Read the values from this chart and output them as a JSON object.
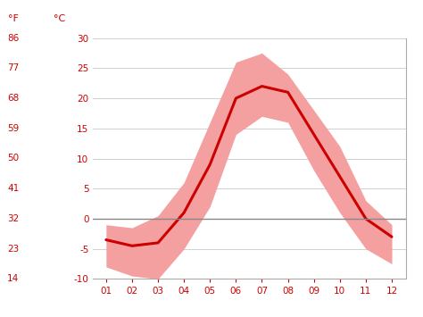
{
  "months": [
    1,
    2,
    3,
    4,
    5,
    6,
    7,
    8,
    9,
    10,
    11,
    12
  ],
  "month_labels": [
    "01",
    "02",
    "03",
    "04",
    "05",
    "06",
    "07",
    "08",
    "09",
    "10",
    "11",
    "12"
  ],
  "mean_temp": [
    -3.5,
    -4.5,
    -4.0,
    1.0,
    9.0,
    20.0,
    22.0,
    21.0,
    14.0,
    7.0,
    0.0,
    -3.0
  ],
  "max_temp": [
    -1.0,
    -1.5,
    0.5,
    6.0,
    16.0,
    26.0,
    27.5,
    24.0,
    18.0,
    12.0,
    3.0,
    -1.0
  ],
  "min_temp": [
    -8.0,
    -9.5,
    -10.0,
    -5.0,
    2.0,
    14.0,
    17.0,
    16.0,
    8.0,
    1.0,
    -5.0,
    -7.5
  ],
  "line_color": "#cc0000",
  "fill_color": "#f4a0a0",
  "zero_line_color": "#888888",
  "grid_color": "#d0d0d0",
  "yticks_c": [
    -10,
    -5,
    0,
    5,
    10,
    15,
    20,
    25,
    30
  ],
  "yticks_f": [
    14,
    23,
    32,
    41,
    50,
    59,
    68,
    77,
    86
  ],
  "ylim": [
    -10,
    30
  ],
  "bg_color": "#ffffff",
  "text_color": "#cc0000",
  "label_f": "°F",
  "label_c": "°C",
  "spine_color": "#aaaaaa",
  "figsize": [
    4.74,
    3.55
  ],
  "dpi": 100
}
